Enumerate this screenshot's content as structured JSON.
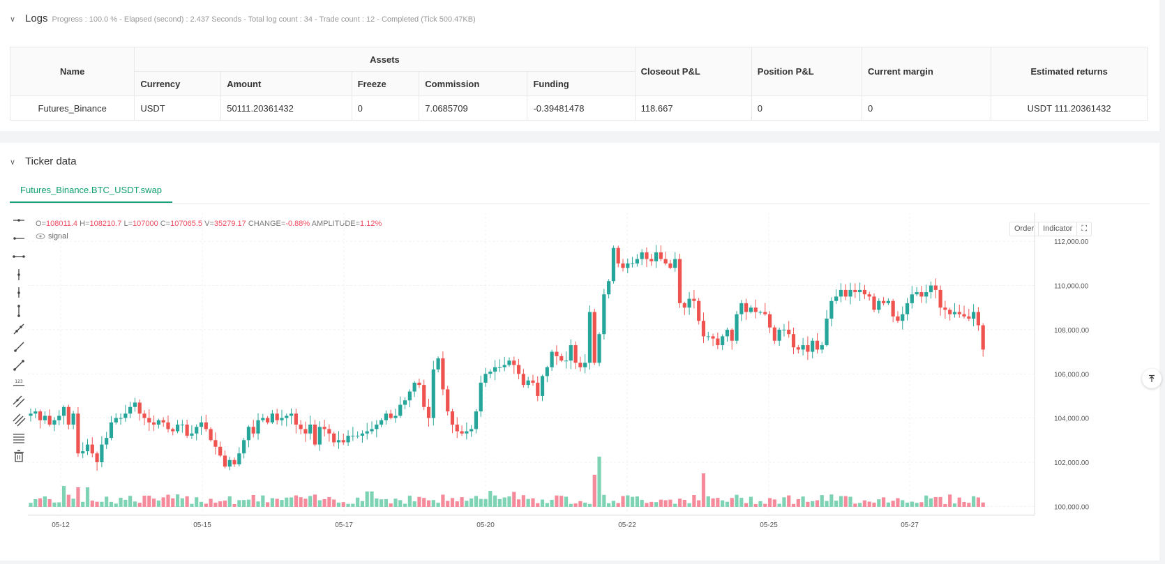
{
  "logs": {
    "title": "Logs",
    "status": "Progress : 100.0 % - Elapsed (second) : 2.437  Seconds - Total log count : 34 - Trade count : 12 - Completed (Tick 500.47KB)",
    "table": {
      "name_header": "Name",
      "assets_header": "Assets",
      "sub_headers": [
        "Currency",
        "Amount",
        "Freeze",
        "Commission",
        "Funding"
      ],
      "closeout_header": "Closeout P&L",
      "position_header": "Position P&L",
      "margin_header": "Current margin",
      "returns_header": "Estimated returns",
      "row": {
        "name": "Futures_Binance",
        "currency": "USDT",
        "amount": "50111.20361432",
        "freeze": "0",
        "commission": "7.0685709",
        "funding": "-0.39481478",
        "closeout": "118.667",
        "position": "0",
        "margin": "0",
        "returns": "USDT 111.20361432"
      }
    }
  },
  "ticker": {
    "title": "Ticker data",
    "tab": "Futures_Binance.BTC_USDT.swap",
    "ohlc": {
      "o_label": "O=",
      "o": "108011.4",
      "h_label": "H=",
      "h": "108210.7",
      "l_label": "L=",
      "l": "107000",
      "c_label": "C=",
      "c": "107065.5",
      "v_label": "V=",
      "v": "35279.17",
      "change_label": "CHANGE=",
      "change": "-0.88%",
      "amp_label": "AMPLITUDE=",
      "amp": "1.12%"
    },
    "signal_label": "signal",
    "buttons": {
      "order": "Order",
      "indicator": "Indicator"
    },
    "tools": [
      "horizontal-line-icon",
      "horizontal-ray-icon",
      "horizontal-segment-icon",
      "vertical-line-icon",
      "vertical-ray-icon",
      "vertical-segment-icon",
      "trend-line-icon",
      "ray-line-icon",
      "segment-line-icon",
      "price-label-icon",
      "parallel-channel-icon",
      "parallel-lines-icon",
      "fibonacci-icon",
      "trash-icon"
    ]
  },
  "chart_data": {
    "type": "candlestick",
    "x_ticks": [
      "05-12",
      "05-15",
      "05-17",
      "05-20",
      "05-22",
      "05-25",
      "05-27"
    ],
    "y_ticks": [
      "112,000.00",
      "110,000.00",
      "108,000.00",
      "106,000.00",
      "104,000.00",
      "102,000.00",
      "100,000.00"
    ],
    "ylim": [
      99600,
      113300
    ],
    "up_color": "#26a69a",
    "down_color": "#ef5350",
    "close_path": [
      104200,
      104300,
      103900,
      104100,
      103700,
      103900,
      104100,
      104500,
      103700,
      104200,
      102400,
      102500,
      102800,
      102400,
      102000,
      102800,
      103100,
      103800,
      104000,
      104000,
      104200,
      104500,
      104700,
      104200,
      104000,
      103800,
      103700,
      103900,
      103800,
      103500,
      103400,
      103700,
      103700,
      103200,
      103300,
      103600,
      103800,
      103500,
      103000,
      102700,
      102300,
      101800,
      102100,
      101900,
      102400,
      103000,
      103600,
      103300,
      103900,
      104000,
      103800,
      104200,
      103900,
      104000,
      104100,
      104200,
      103700,
      103500,
      103300,
      103700,
      102800,
      103600,
      103500,
      103300,
      102900,
      103000,
      102900,
      103200,
      103200,
      103200,
      103300,
      103400,
      103500,
      103700,
      103900,
      104200,
      104000,
      104100,
      104600,
      104800,
      105200,
      105600,
      105500,
      104500,
      104000,
      106200,
      106700,
      105300,
      104300,
      103700,
      103400,
      103300,
      103400,
      103500,
      104300,
      105600,
      106000,
      106100,
      106300,
      106300,
      106400,
      106600,
      106400,
      106000,
      105500,
      105700,
      105600,
      105000,
      105900,
      106300,
      107000,
      106800,
      106600,
      106600,
      107300,
      106500,
      106300,
      106500,
      108800,
      106500,
      107800,
      109600,
      110200,
      111700,
      111000,
      110800,
      111000,
      111000,
      111200,
      111500,
      111200,
      111100,
      111500,
      111200,
      111000,
      110800,
      111200,
      109200,
      109000,
      109400,
      109300,
      108400,
      107700,
      107700,
      107600,
      107300,
      107700,
      108000,
      107500,
      108700,
      109200,
      108800,
      109000,
      108800,
      108800,
      108700,
      108100,
      107500,
      108000,
      108000,
      107800,
      107200,
      107100,
      107300,
      107000,
      107500,
      107100,
      107300,
      108500,
      109300,
      109500,
      109800,
      109500,
      109800,
      109700,
      109800,
      109600,
      109500,
      108900,
      109300,
      109200,
      109300,
      108600,
      108400,
      108700,
      109200,
      109600,
      109700,
      109500,
      109700,
      110000,
      109800,
      109000,
      108900,
      108700,
      108800,
      108700,
      108600,
      108500,
      108800,
      108200,
      107100
    ]
  }
}
